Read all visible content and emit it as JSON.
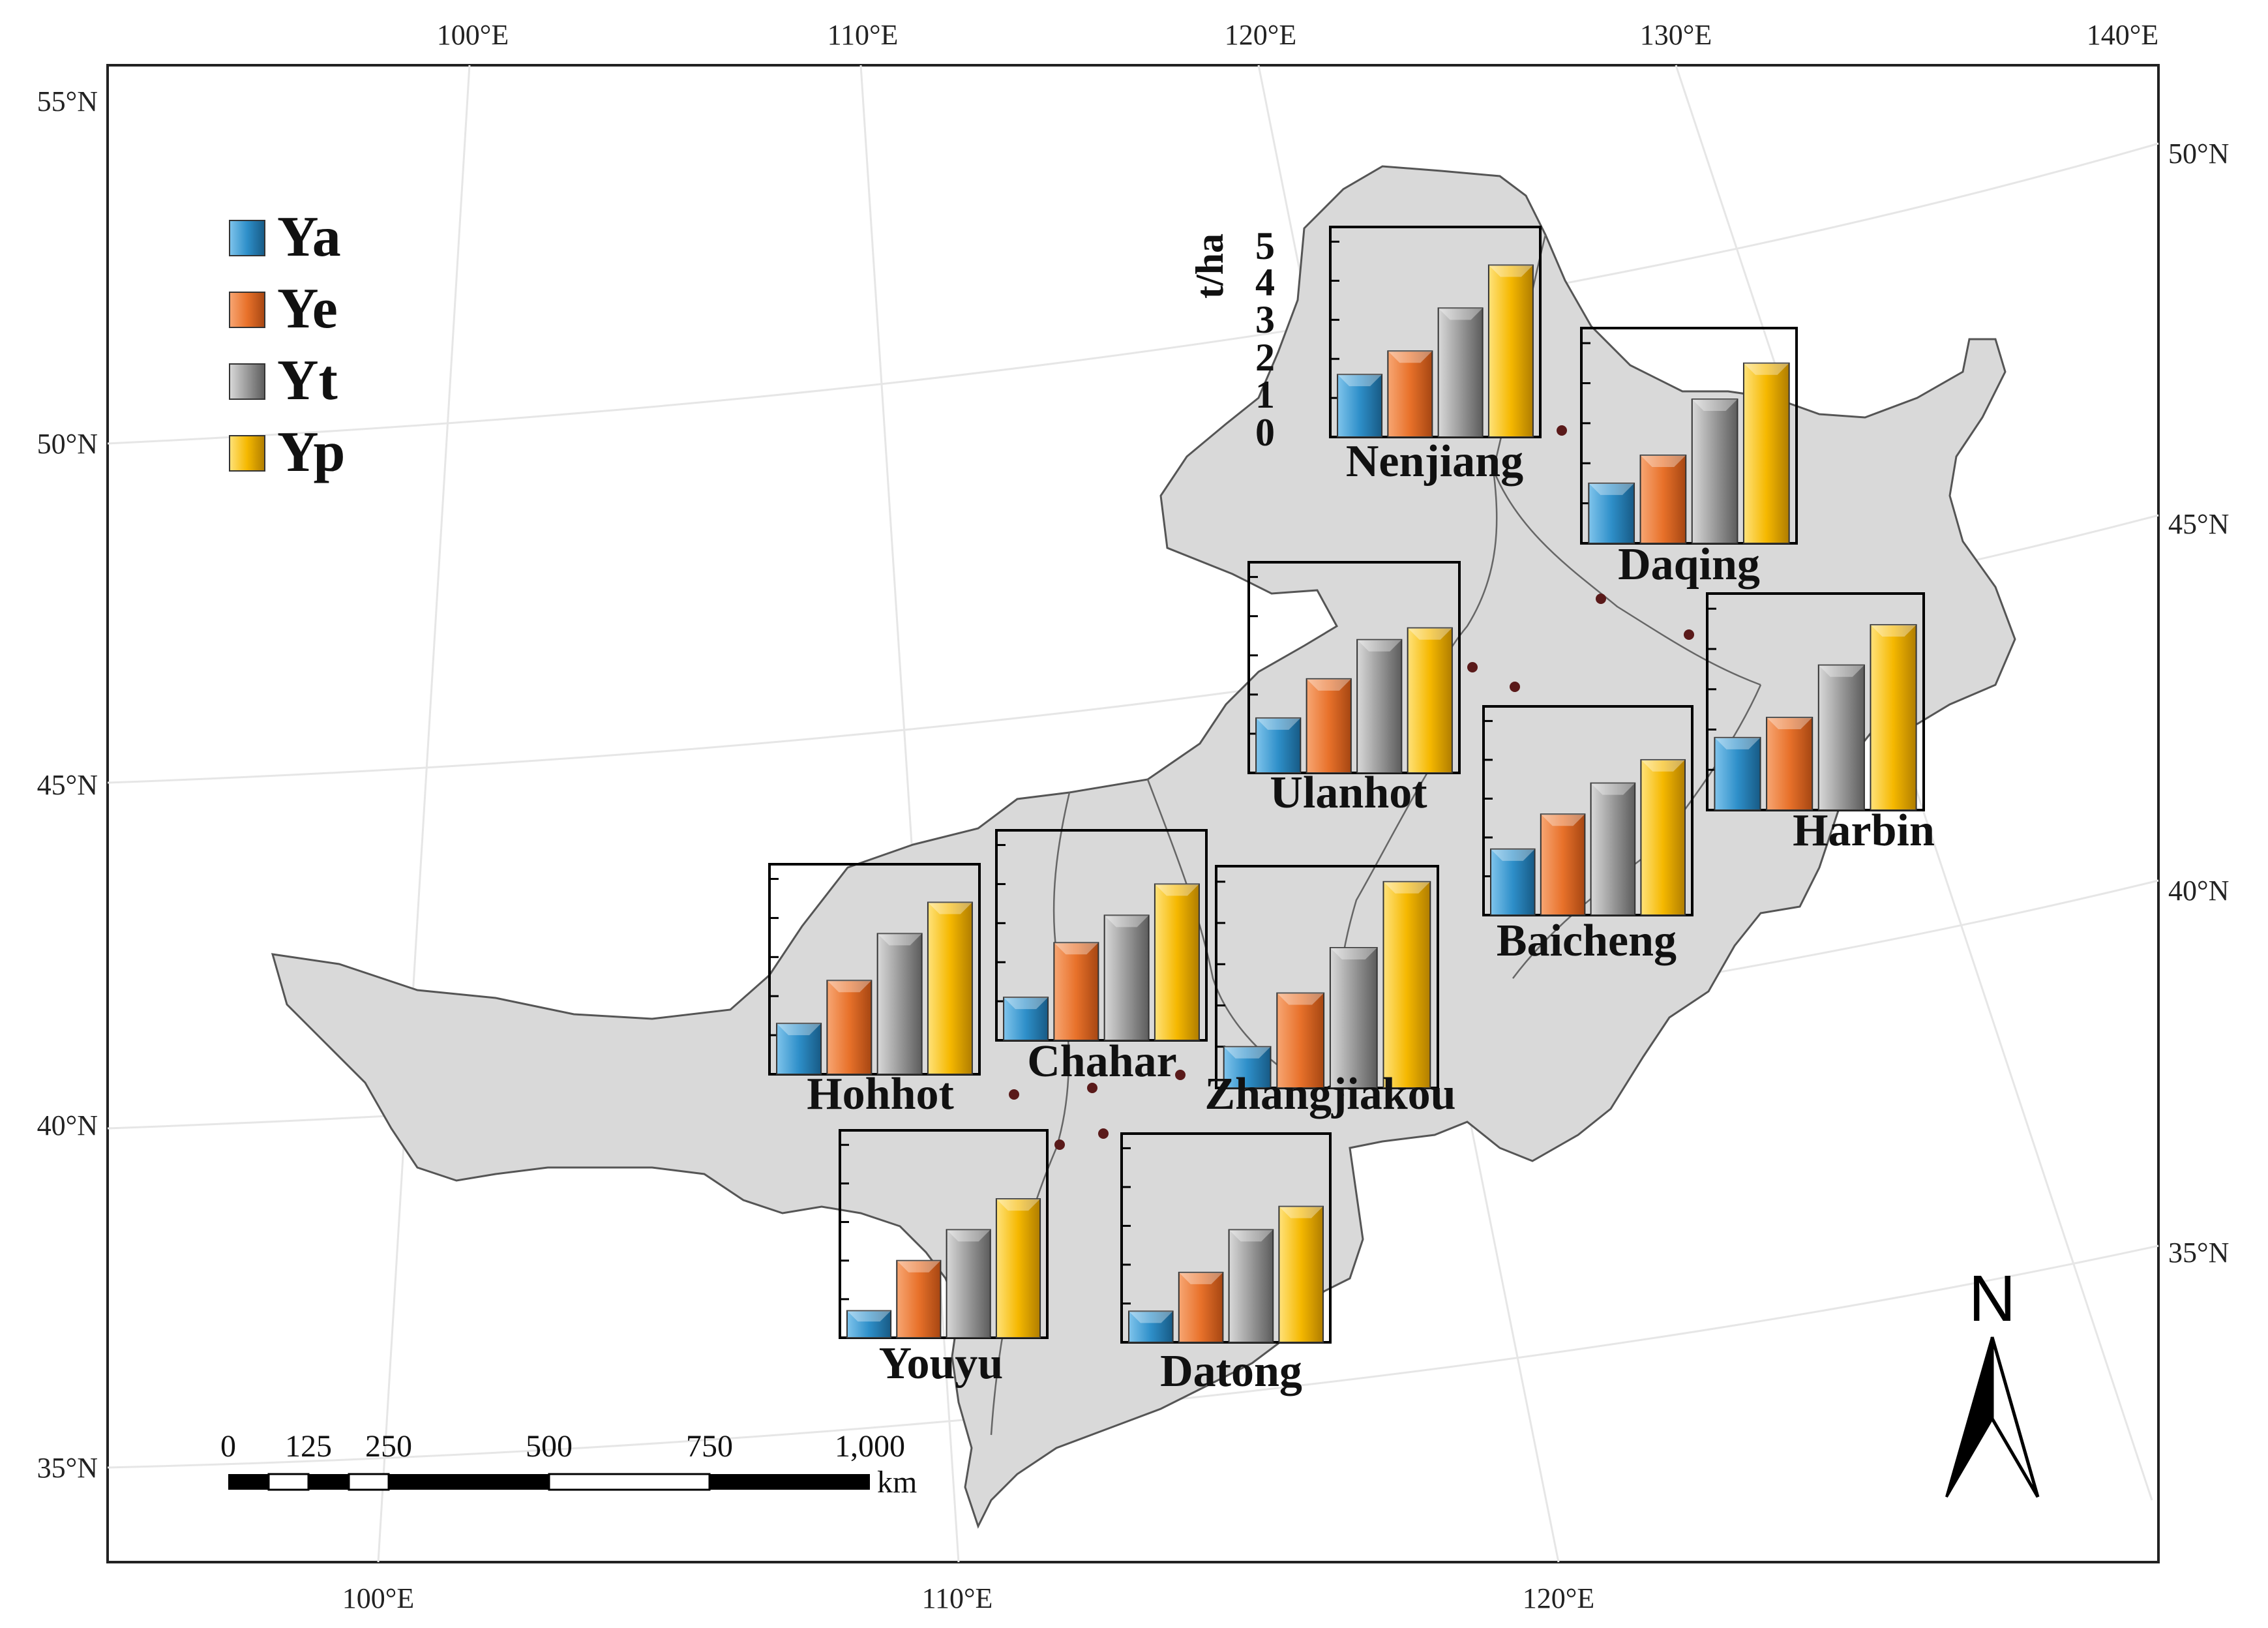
{
  "map": {
    "top_lon_labels": [
      "100°E",
      "110°E",
      "120°E",
      "130°E",
      "140°E"
    ],
    "bottom_lon_labels": [
      "100°E",
      "110°E",
      "120°E"
    ],
    "left_lat_labels": [
      "55°N",
      "50°N",
      "45°N",
      "40°N",
      "35°N"
    ],
    "right_lat_labels": [
      "50°N",
      "45°N",
      "40°N",
      "35°N"
    ],
    "region_fill": "#d9d9d9",
    "north_label": "N",
    "unit_label": "t/ha",
    "y_axis_ticks": [
      "5",
      "4",
      "3",
      "2",
      "1",
      "0"
    ]
  },
  "legend": [
    {
      "key": "Ya",
      "color": "#2e8fc9"
    },
    {
      "key": "Ye",
      "color": "#e8712a"
    },
    {
      "key": "Yt",
      "color": "#9a9a9a"
    },
    {
      "key": "Yp",
      "color": "#f5b800"
    }
  ],
  "scale_bar": {
    "labels": [
      "0",
      "125",
      "250",
      "500",
      "750",
      "1,000"
    ],
    "unit": "km"
  },
  "chart_data": {
    "type": "bar",
    "series_names": [
      "Ya",
      "Ye",
      "Yt",
      "Yp"
    ],
    "ylabel": "t/ha",
    "ylim": [
      0,
      5
    ],
    "stations": [
      {
        "name": "Nenjiang",
        "values": [
          1.6,
          2.2,
          3.3,
          4.4
        ]
      },
      {
        "name": "Daqing",
        "values": [
          1.5,
          2.2,
          3.6,
          4.5
        ]
      },
      {
        "name": "Ulanhot",
        "values": [
          1.4,
          2.4,
          3.4,
          3.7
        ]
      },
      {
        "name": "Harbin",
        "values": [
          1.8,
          2.3,
          3.6,
          4.6
        ]
      },
      {
        "name": "Baicheng",
        "values": [
          1.7,
          2.6,
          3.4,
          4.0
        ]
      },
      {
        "name": "Hohhot",
        "values": [
          1.3,
          2.4,
          3.6,
          4.4
        ]
      },
      {
        "name": "Chahar",
        "values": [
          1.1,
          2.5,
          3.2,
          4.0
        ]
      },
      {
        "name": "Zhangjiakou",
        "values": [
          1.0,
          2.3,
          3.4,
          5.0
        ]
      },
      {
        "name": "Youyu",
        "values": [
          0.7,
          2.0,
          2.8,
          3.6
        ]
      },
      {
        "name": "Datong",
        "values": [
          0.8,
          1.8,
          2.9,
          3.5
        ]
      }
    ]
  }
}
